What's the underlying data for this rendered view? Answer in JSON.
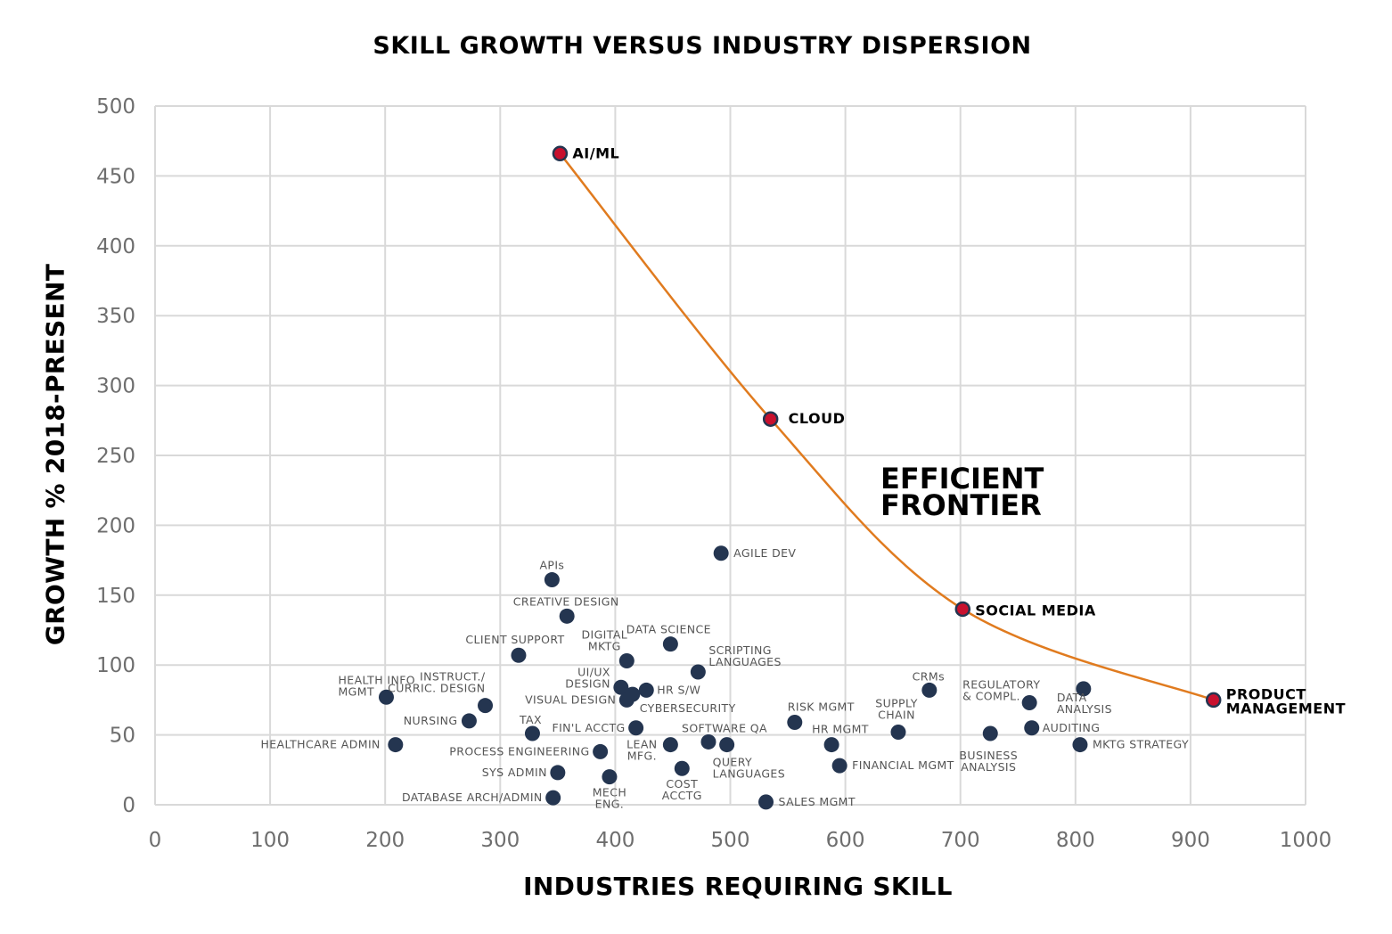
{
  "chart_data": {
    "type": "scatter",
    "title": "SKILL GROWTH VERSUS INDUSTRY DISPERSION",
    "xlabel": "INDUSTRIES REQUIRING SKILL",
    "ylabel": "GROWTH % 2018-PRESENT",
    "xlim": [
      0,
      1000
    ],
    "ylim": [
      0,
      500
    ],
    "x_ticks": [
      0,
      100,
      200,
      300,
      400,
      500,
      600,
      700,
      800,
      900,
      1000
    ],
    "y_ticks": [
      0,
      50,
      100,
      150,
      200,
      250,
      300,
      350,
      400,
      450,
      500
    ],
    "grid": true,
    "colors": {
      "point": "#243550",
      "frontier_point": "#c8102e",
      "frontier_line": "#e07b1f",
      "grid": "#d9d9d9"
    },
    "annotation": "EFFICIENT FRONTIER",
    "frontier": [
      {
        "label": "AI/ML",
        "x": 352,
        "y": 466
      },
      {
        "label": "CLOUD",
        "x": 535,
        "y": 276
      },
      {
        "label": "SOCIAL MEDIA",
        "x": 702,
        "y": 140
      },
      {
        "label": "PRODUCT MANAGEMENT",
        "x": 920,
        "y": 75
      }
    ],
    "points": [
      {
        "label": "APIs",
        "x": 345,
        "y": 161
      },
      {
        "label": "CREATIVE DESIGN",
        "x": 358,
        "y": 135
      },
      {
        "label": "AGILE DEV",
        "x": 492,
        "y": 180
      },
      {
        "label": "DATA SCIENCE",
        "x": 448,
        "y": 115
      },
      {
        "label": "CLIENT SUPPORT",
        "x": 316,
        "y": 107
      },
      {
        "label": "DIGITAL MKTG",
        "x": 410,
        "y": 103
      },
      {
        "label": "SCRIPTING LANGUAGES",
        "x": 472,
        "y": 95
      },
      {
        "label": "UI/UX DESIGN",
        "x": 405,
        "y": 84
      },
      {
        "label": "HR S/W",
        "x": 427,
        "y": 82
      },
      {
        "label": "CYBERSECURITY",
        "x": 415,
        "y": 79
      },
      {
        "label": "VISUAL DESIGN",
        "x": 410,
        "y": 75
      },
      {
        "label": "HEALTH INFO MGMT",
        "x": 201,
        "y": 77
      },
      {
        "label": "INSTRUCT./ CURRIC. DESIGN",
        "x": 287,
        "y": 71
      },
      {
        "label": "NURSING",
        "x": 273,
        "y": 60
      },
      {
        "label": "TAX",
        "x": 328,
        "y": 51
      },
      {
        "label": "FIN'L ACCTG",
        "x": 418,
        "y": 55
      },
      {
        "label": "SOFTWARE QA",
        "x": 481,
        "y": 45
      },
      {
        "label": "QUERY LANGUAGES",
        "x": 497,
        "y": 43
      },
      {
        "label": "LEAN MFG.",
        "x": 448,
        "y": 43
      },
      {
        "label": "COST ACCTG",
        "x": 458,
        "y": 26
      },
      {
        "label": "PROCESS ENGINEERING",
        "x": 387,
        "y": 38
      },
      {
        "label": "SYS ADMIN",
        "x": 350,
        "y": 23
      },
      {
        "label": "MECH ENG.",
        "x": 395,
        "y": 20
      },
      {
        "label": "DATABASE ARCH/ADMIN",
        "x": 346,
        "y": 5
      },
      {
        "label": "HEALTHCARE ADMIN",
        "x": 209,
        "y": 43
      },
      {
        "label": "RISK MGMT",
        "x": 556,
        "y": 59
      },
      {
        "label": "HR MGMT",
        "x": 588,
        "y": 43
      },
      {
        "label": "FINANCIAL MGMT",
        "x": 595,
        "y": 28
      },
      {
        "label": "SALES MGMT",
        "x": 531,
        "y": 2
      },
      {
        "label": "SUPPLY CHAIN",
        "x": 646,
        "y": 52
      },
      {
        "label": "CRMs",
        "x": 673,
        "y": 82
      },
      {
        "label": "REGULATORY & COMPL.",
        "x": 760,
        "y": 73
      },
      {
        "label": "BUSINESS ANALYSIS",
        "x": 726,
        "y": 51
      },
      {
        "label": "AUDITING",
        "x": 762,
        "y": 55
      },
      {
        "label": "DATA ANALYSIS",
        "x": 807,
        "y": 83
      },
      {
        "label": "MKTG STRATEGY",
        "x": 804,
        "y": 43
      }
    ]
  }
}
